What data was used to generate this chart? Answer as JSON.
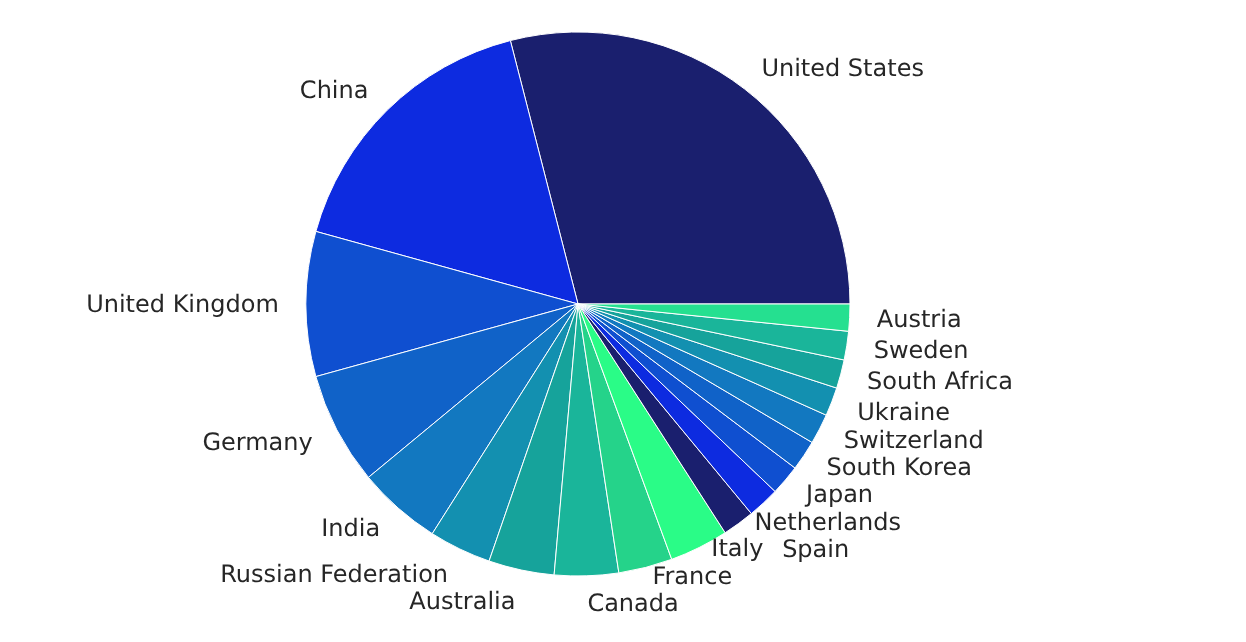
{
  "chart_data": {
    "type": "pie",
    "categories": [
      "United States",
      "China",
      "United Kingdom",
      "Germany",
      "India",
      "Russian Federation",
      "Australia",
      "Canada",
      "France",
      "Italy",
      "Netherlands",
      "Spain",
      "Japan",
      "South Korea",
      "Switzerland",
      "Ukraine",
      "South Africa",
      "Sweden",
      "Austria"
    ],
    "values": [
      29.0,
      16.7,
      8.6,
      6.7,
      5.0,
      3.7,
      3.9,
      3.8,
      3.2,
      3.5,
      1.9,
      1.9,
      1.8,
      1.8,
      1.8,
      1.7,
      1.7,
      1.7,
      1.6
    ],
    "colors": [
      "#1a1f6e",
      "#0d2be0",
      "#0f4fd0",
      "#1062c8",
      "#1278c0",
      "#1390b0",
      "#16a39b",
      "#1ab59a",
      "#25d38a",
      "#2afc87",
      "#1a1f6e",
      "#0d2be0",
      "#0f4fd0",
      "#1062c8",
      "#1278c0",
      "#1390b0",
      "#16a39b",
      "#1ab59a",
      "#25e090"
    ]
  }
}
